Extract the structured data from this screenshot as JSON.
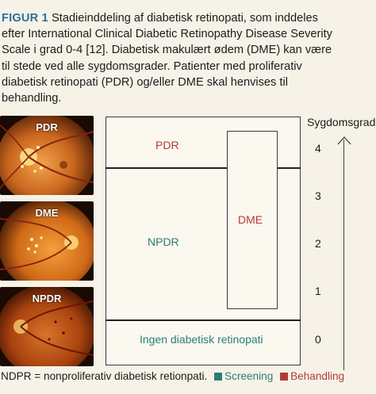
{
  "caption": {
    "label": "FIGUR 1",
    "lines": [
      " Stadieinddeling af diabetisk retinopati, som inddeles",
      "efter International Clinical Diabetic Retinopathy Disease Severity",
      "Scale i grad 0-4 [12]. Diabetisk makulært ødem (DME) kan være",
      "til stede ved alle sygdomsgrader. Patienter med proliferativ",
      "diabetisk retinopati (PDR) og/eller DME skal henvises til",
      "behandling."
    ]
  },
  "photos": [
    {
      "label": "PDR"
    },
    {
      "label": "DME"
    },
    {
      "label": "NPDR"
    }
  ],
  "diagram": {
    "regions": {
      "pdr": "PDR",
      "npdr": "NPDR",
      "dme": "DME",
      "none": "Ingen diabetisk retinopati"
    },
    "scale": {
      "title": "Sygdomsgrad",
      "ticks": [
        "4",
        "3",
        "2",
        "1",
        "0"
      ]
    }
  },
  "footer": {
    "note": "NDPR = nonproliferativ diabetisk retionpati.",
    "legend": [
      {
        "label": "Screening",
        "color": "#2d7d76"
      },
      {
        "label": "Behandling",
        "color": "#b23a3a"
      }
    ]
  },
  "colors": {
    "treatment": "#b23a3a",
    "screening": "#2d7d76",
    "figure_label": "#2a6fa0"
  }
}
